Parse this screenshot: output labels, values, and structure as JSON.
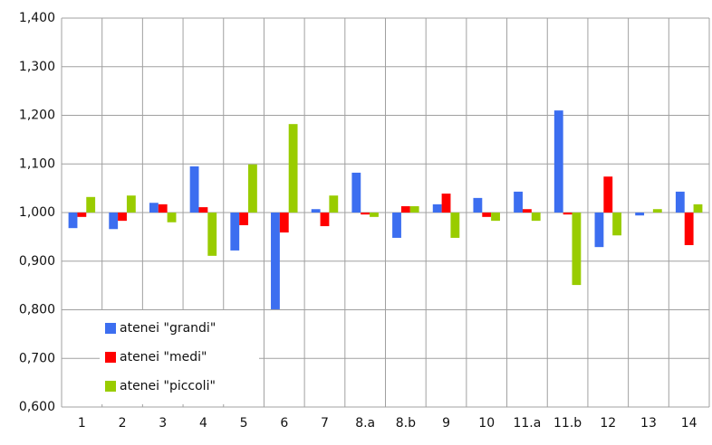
{
  "chart_data": {
    "type": "bar",
    "categories": [
      "1",
      "2",
      "3",
      "4",
      "5",
      "6",
      "7",
      "8.a",
      "8.b",
      "9",
      "10",
      "11.a",
      "11.b",
      "12",
      "13",
      "14"
    ],
    "series": [
      {
        "name": "atenei \"grandi\"",
        "color": "#3c6ef0",
        "values": [
          0.968,
          0.966,
          1.02,
          1.095,
          0.922,
          0.801,
          1.007,
          1.082,
          0.948,
          1.017,
          1.03,
          1.043,
          1.21,
          0.929,
          0.994,
          1.043
        ]
      },
      {
        "name": "atenei \"medi\"",
        "color": "#ff0000",
        "values": [
          0.991,
          0.983,
          1.017,
          1.011,
          0.974,
          0.959,
          0.972,
          0.996,
          1.013,
          1.039,
          0.991,
          1.007,
          0.996,
          1.074,
          1.0,
          0.933
        ]
      },
      {
        "name": "atenei \"piccoli\"",
        "color": "#99cc00",
        "values": [
          1.032,
          1.035,
          0.98,
          0.911,
          1.099,
          1.182,
          1.035,
          0.991,
          1.013,
          0.948,
          0.983,
          0.983,
          0.851,
          0.953,
          1.007,
          1.017
        ]
      }
    ],
    "ylim": [
      0.6,
      1.4
    ],
    "yticks": [
      {
        "value": 0.6,
        "label": "0,600"
      },
      {
        "value": 0.7,
        "label": "0,700"
      },
      {
        "value": 0.8,
        "label": "0,800"
      },
      {
        "value": 0.9,
        "label": "0,900"
      },
      {
        "value": 1.0,
        "label": "1,000"
      },
      {
        "value": 1.1,
        "label": "1,100"
      },
      {
        "value": 1.2,
        "label": "1,200"
      },
      {
        "value": 1.3,
        "label": "1,300"
      },
      {
        "value": 1.4,
        "label": "1,400"
      }
    ],
    "bar_base": 1,
    "grid": true,
    "legend": "bottom-left"
  }
}
